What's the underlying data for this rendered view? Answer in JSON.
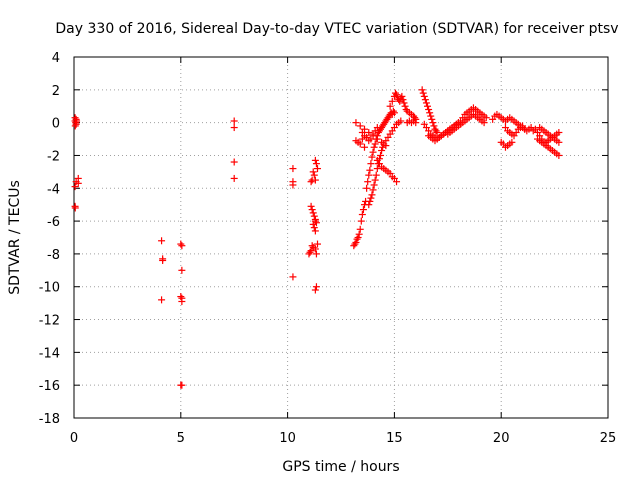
{
  "chart_data": {
    "type": "scatter",
    "title": "Day 330 of 2016, Sidereal Day-to-day VTEC variation (SDTVAR) for receiver ptsv",
    "xlabel": "GPS time / hours",
    "ylabel": "SDTVAR / TECUs",
    "xlim": [
      0,
      25
    ],
    "ylim": [
      -18,
      4
    ],
    "xticks": [
      "0",
      "5",
      "10",
      "15",
      "20",
      "25"
    ],
    "yticks": [
      "-18",
      "-16",
      "-14",
      "-12",
      "-10",
      "-8",
      "-6",
      "-4",
      "-2",
      "0",
      "2",
      "4"
    ],
    "grid": true,
    "marker": "+",
    "color": "#ff0000",
    "series": [
      {
        "name": "SDTVAR",
        "x": [
          0.05,
          0.05,
          0.06,
          0.08,
          0.1,
          0.1,
          0.12,
          0.1,
          0.2,
          0.2,
          0.05,
          0.05,
          0.06,
          4.1,
          4.15,
          4.15,
          4.1,
          5.0,
          5.05,
          5.05,
          5.0,
          5.05,
          5.05,
          5.0,
          5.05,
          7.5,
          7.5,
          7.5,
          7.5,
          10.25,
          10.25,
          10.25,
          10.25,
          11.0,
          11.05,
          11.1,
          11.15,
          11.2,
          11.3,
          11.35,
          11.4,
          11.3,
          11.2,
          11.25,
          11.3,
          11.1,
          11.15,
          11.2,
          11.25,
          11.3,
          11.35,
          11.2,
          11.25,
          11.3,
          11.1,
          11.15,
          11.3,
          11.35,
          11.4,
          11.35,
          11.3,
          13.1,
          13.15,
          13.2,
          13.25,
          13.3,
          13.35,
          13.4,
          13.45,
          13.5,
          13.55,
          13.6,
          13.65,
          13.2,
          13.3,
          13.4,
          13.5,
          13.6,
          13.7,
          13.75,
          13.8,
          13.85,
          13.9,
          13.95,
          14.0,
          14.05,
          14.1,
          14.15,
          14.2,
          14.25,
          14.3,
          14.35,
          14.4,
          14.45,
          14.5,
          14.55,
          14.6,
          14.65,
          14.7,
          14.75,
          14.8,
          14.85,
          14.9,
          14.95,
          15.0,
          13.5,
          13.6,
          13.7,
          13.8,
          13.9,
          14.0,
          14.1,
          14.2,
          13.8,
          13.85,
          13.9,
          13.95,
          14.0,
          14.05,
          14.1,
          14.15,
          14.2,
          14.25,
          14.3,
          14.35,
          14.4,
          14.45,
          14.5,
          14.6,
          14.7,
          14.8,
          14.9,
          15.0,
          15.1,
          15.2,
          15.3,
          14.2,
          14.3,
          14.4,
          14.5,
          14.6,
          14.7,
          14.8,
          14.9,
          15.0,
          15.1,
          13.2,
          13.4,
          13.6,
          13.8,
          14.0,
          14.2,
          14.4,
          14.6,
          14.8,
          14.9,
          15.0,
          15.05,
          15.1,
          15.15,
          15.2,
          15.25,
          15.3,
          15.35,
          15.4,
          15.45,
          15.5,
          15.55,
          15.6,
          15.7,
          15.8,
          15.9,
          15.95,
          16.0,
          15.6,
          15.7,
          15.8,
          15.9,
          16.0,
          16.3,
          16.35,
          16.4,
          16.45,
          16.5,
          16.55,
          16.6,
          16.65,
          16.7,
          16.75,
          16.8,
          16.85,
          16.9,
          16.95,
          17.0,
          16.4,
          16.5,
          16.6,
          16.7,
          16.8,
          16.9,
          17.0,
          17.1,
          17.2,
          17.3,
          17.4,
          17.5,
          17.6,
          17.7,
          17.8,
          17.9,
          18.0,
          18.1,
          18.2,
          18.3,
          18.4,
          18.5,
          18.6,
          18.7,
          18.8,
          18.9,
          19.0,
          19.1,
          19.2,
          19.3,
          17.5,
          17.6,
          17.7,
          17.8,
          17.9,
          18.0,
          18.1,
          18.2,
          18.3,
          18.4,
          18.5,
          18.6,
          18.7,
          18.8,
          18.9,
          19.0,
          19.1,
          19.2,
          16.6,
          16.7,
          16.8,
          16.9,
          17.0,
          17.1,
          17.2,
          17.3,
          17.4,
          17.5,
          17.6,
          17.7,
          17.8,
          17.9,
          18.0,
          19.6,
          19.7,
          19.8,
          19.9,
          20.0,
          20.1,
          20.2,
          20.3,
          20.4,
          20.5,
          20.6,
          20.7,
          20.8,
          20.9,
          21.0,
          21.1,
          21.2,
          21.3,
          21.4,
          21.5,
          20.0,
          20.1,
          20.2,
          20.3,
          20.4,
          20.5,
          20.2,
          20.3,
          20.4,
          20.5,
          20.6,
          20.7,
          20.8,
          20.9,
          21.0,
          21.1,
          21.6,
          21.7,
          21.8,
          21.9,
          22.0,
          22.1,
          22.2,
          22.3,
          22.4,
          22.5,
          22.6,
          22.7,
          21.8,
          21.9,
          22.0,
          22.1,
          22.2,
          22.3,
          22.4,
          22.5,
          22.6,
          22.7,
          21.7,
          21.8,
          21.9,
          22.0,
          22.1,
          22.2,
          22.3,
          22.4,
          22.5,
          22.6,
          22.7
        ],
        "y": [
          0.3,
          0.1,
          -0.2,
          0.0,
          0.2,
          -0.1,
          0.1,
          -3.6,
          -3.7,
          -3.4,
          -3.9,
          -5.1,
          -5.2,
          -7.2,
          -8.3,
          -8.4,
          -10.8,
          -7.4,
          -7.5,
          -9.0,
          -10.6,
          -10.7,
          -10.9,
          -16.0,
          -16.0,
          0.1,
          -0.3,
          -2.4,
          -3.4,
          -2.8,
          -3.6,
          -3.8,
          -9.4,
          -8.0,
          -7.9,
          -7.8,
          -7.5,
          -7.6,
          -7.7,
          -8.0,
          -7.4,
          -6.0,
          -6.2,
          -6.4,
          -6.6,
          -5.1,
          -5.3,
          -5.5,
          -5.7,
          -5.9,
          -6.1,
          -3.0,
          -3.2,
          -3.5,
          -3.6,
          -3.5,
          -2.3,
          -2.5,
          -2.8,
          -10.0,
          -10.2,
          -7.5,
          -7.4,
          -7.3,
          -7.1,
          -7.0,
          -6.8,
          -6.5,
          -6.0,
          -5.6,
          -5.3,
          -5.0,
          -4.8,
          -1.1,
          -1.2,
          -1.3,
          -1.0,
          -1.5,
          -4.0,
          -3.6,
          -3.2,
          -2.9,
          -2.5,
          -2.1,
          -1.8,
          -1.5,
          -1.3,
          -1.0,
          -0.8,
          -0.6,
          -0.5,
          -0.4,
          -0.3,
          -0.2,
          -0.1,
          0.0,
          0.1,
          0.2,
          0.3,
          0.4,
          0.5,
          0.6,
          0.5,
          0.7,
          0.6,
          -0.6,
          -0.8,
          -0.9,
          -1.1,
          -1.0,
          -0.7,
          -0.5,
          -0.3,
          -5.0,
          -4.8,
          -4.6,
          -4.4,
          -4.1,
          -3.8,
          -3.5,
          -3.2,
          -2.8,
          -2.5,
          -2.2,
          -2.0,
          -1.7,
          -1.5,
          -1.3,
          -1.1,
          -0.9,
          -0.7,
          -0.5,
          -0.3,
          -0.1,
          0.0,
          0.1,
          -2.3,
          -2.5,
          -2.7,
          -2.8,
          -2.9,
          -3.0,
          -3.1,
          -3.3,
          -3.4,
          -3.6,
          0.0,
          -0.2,
          -0.4,
          -0.6,
          -0.8,
          -1.0,
          -1.2,
          -1.4,
          1.0,
          1.3,
          1.6,
          1.8,
          1.7,
          1.5,
          1.4,
          1.3,
          1.5,
          1.6,
          1.4,
          1.2,
          1.0,
          0.8,
          0.7,
          0.6,
          0.5,
          0.4,
          0.3,
          0.2,
          0.0,
          0.1,
          0.0,
          0.1,
          0.0,
          2.0,
          1.8,
          1.6,
          1.4,
          1.2,
          1.0,
          0.8,
          0.6,
          0.4,
          0.2,
          0.0,
          -0.2,
          -0.4,
          -0.5,
          -0.6,
          -0.1,
          -0.3,
          -0.5,
          -0.7,
          -0.8,
          -0.9,
          -1.0,
          -0.9,
          -0.8,
          -0.7,
          -0.6,
          -0.5,
          -0.4,
          -0.3,
          -0.2,
          -0.1,
          0.0,
          0.1,
          0.3,
          0.5,
          0.6,
          0.7,
          0.8,
          0.9,
          0.8,
          0.7,
          0.6,
          0.5,
          0.4,
          0.3,
          -0.7,
          -0.6,
          -0.5,
          -0.4,
          -0.3,
          -0.2,
          -0.1,
          0.0,
          0.1,
          0.2,
          0.3,
          0.4,
          0.5,
          0.4,
          0.3,
          0.2,
          0.1,
          0.0,
          -0.8,
          -0.9,
          -1.0,
          -1.1,
          -1.0,
          -0.9,
          -0.8,
          -0.7,
          -0.6,
          -0.5,
          -0.4,
          -0.3,
          -0.2,
          -0.1,
          0.0,
          0.2,
          0.4,
          0.5,
          0.4,
          0.3,
          0.2,
          0.1,
          0.2,
          0.3,
          0.2,
          0.1,
          0.0,
          -0.1,
          -0.2,
          -0.3,
          -0.4,
          -0.5,
          -0.4,
          -0.3,
          -0.5,
          -1.2,
          -1.3,
          -1.5,
          -1.4,
          -1.3,
          -1.2,
          -0.3,
          -0.5,
          -0.6,
          -0.7,
          -0.8,
          -0.6,
          -0.4,
          -0.3,
          -0.2,
          -0.4,
          -0.4,
          -0.6,
          -0.8,
          -1.0,
          -1.2,
          -1.4,
          -1.5,
          -1.6,
          -1.7,
          -1.8,
          -1.9,
          -2.0,
          -0.3,
          -0.4,
          -0.5,
          -0.6,
          -0.7,
          -0.8,
          -0.9,
          -1.0,
          -1.1,
          -1.2,
          -1.0,
          -1.1,
          -1.2,
          -1.3,
          -1.2,
          -1.1,
          -1.0,
          -0.9,
          -0.8,
          -0.7,
          -0.6
        ]
      }
    ]
  }
}
